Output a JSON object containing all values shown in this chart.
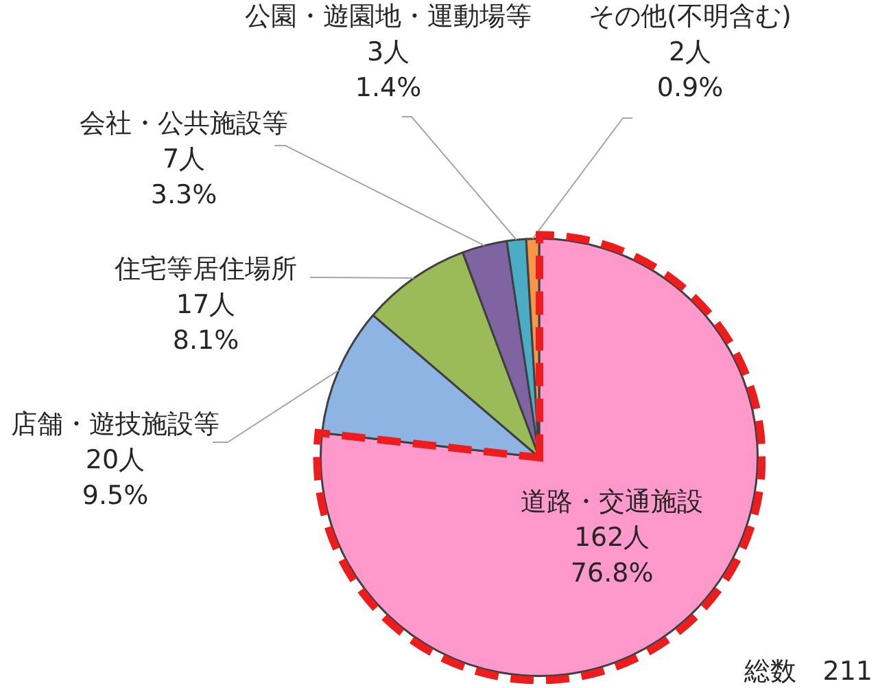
{
  "chart_data": {
    "type": "pie",
    "categories": [
      "道路・交通施設",
      "店舗・遊技施設等",
      "住宅等居住場所",
      "会社・公共施設等",
      "公園・遊園地・運動場等",
      "その他(不明含む)"
    ],
    "values": [
      162,
      20,
      17,
      7,
      3,
      2
    ],
    "colors": [
      "#ff99cc",
      "#8eb4e3",
      "#9bbb59",
      "#8064a2",
      "#4bacc6",
      "#f79646"
    ],
    "value_labels": [
      "162人\n76.8%",
      "20人\n9.5%",
      "17人\n8.1%",
      "7人\n3.3%",
      "3人\n1.4%",
      "2人\n0.9%"
    ],
    "annotations": [
      "総数　211"
    ],
    "legend": false
  }
}
